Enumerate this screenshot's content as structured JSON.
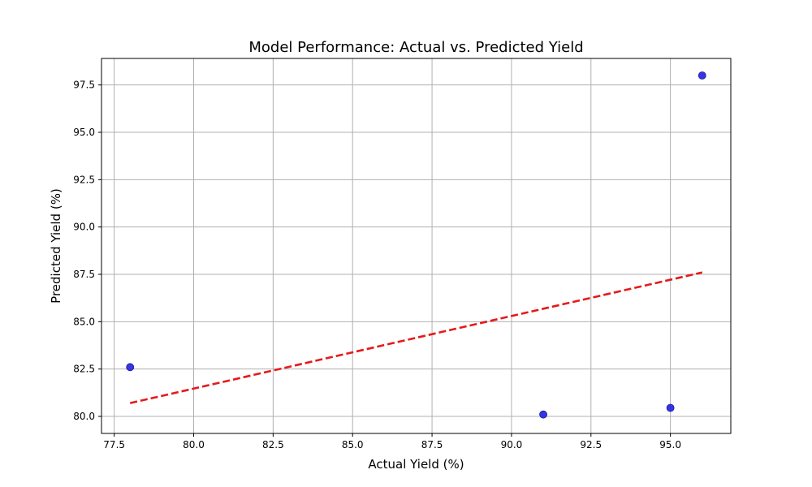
{
  "chart_data": {
    "type": "scatter",
    "title": "Model Performance: Actual vs. Predicted Yield",
    "xlabel": "Actual Yield (%)",
    "ylabel": "Predicted Yield (%)",
    "xlim": [
      77.1,
      96.9
    ],
    "ylim": [
      79.1,
      98.9
    ],
    "xticks": [
      77.5,
      80.0,
      82.5,
      85.0,
      87.5,
      90.0,
      92.5,
      95.0
    ],
    "yticks": [
      80.0,
      82.5,
      85.0,
      87.5,
      90.0,
      92.5,
      95.0,
      97.5
    ],
    "grid": true,
    "points": {
      "x": [
        78.0,
        91.0,
        95.0,
        96.0
      ],
      "y": [
        82.6,
        80.1,
        80.45,
        98.0
      ],
      "color": "#2b2bdf"
    },
    "fit_line": {
      "x": [
        78.0,
        96.0
      ],
      "y": [
        80.7,
        87.6
      ],
      "color": "#e41a1c",
      "style": "dashed"
    }
  }
}
